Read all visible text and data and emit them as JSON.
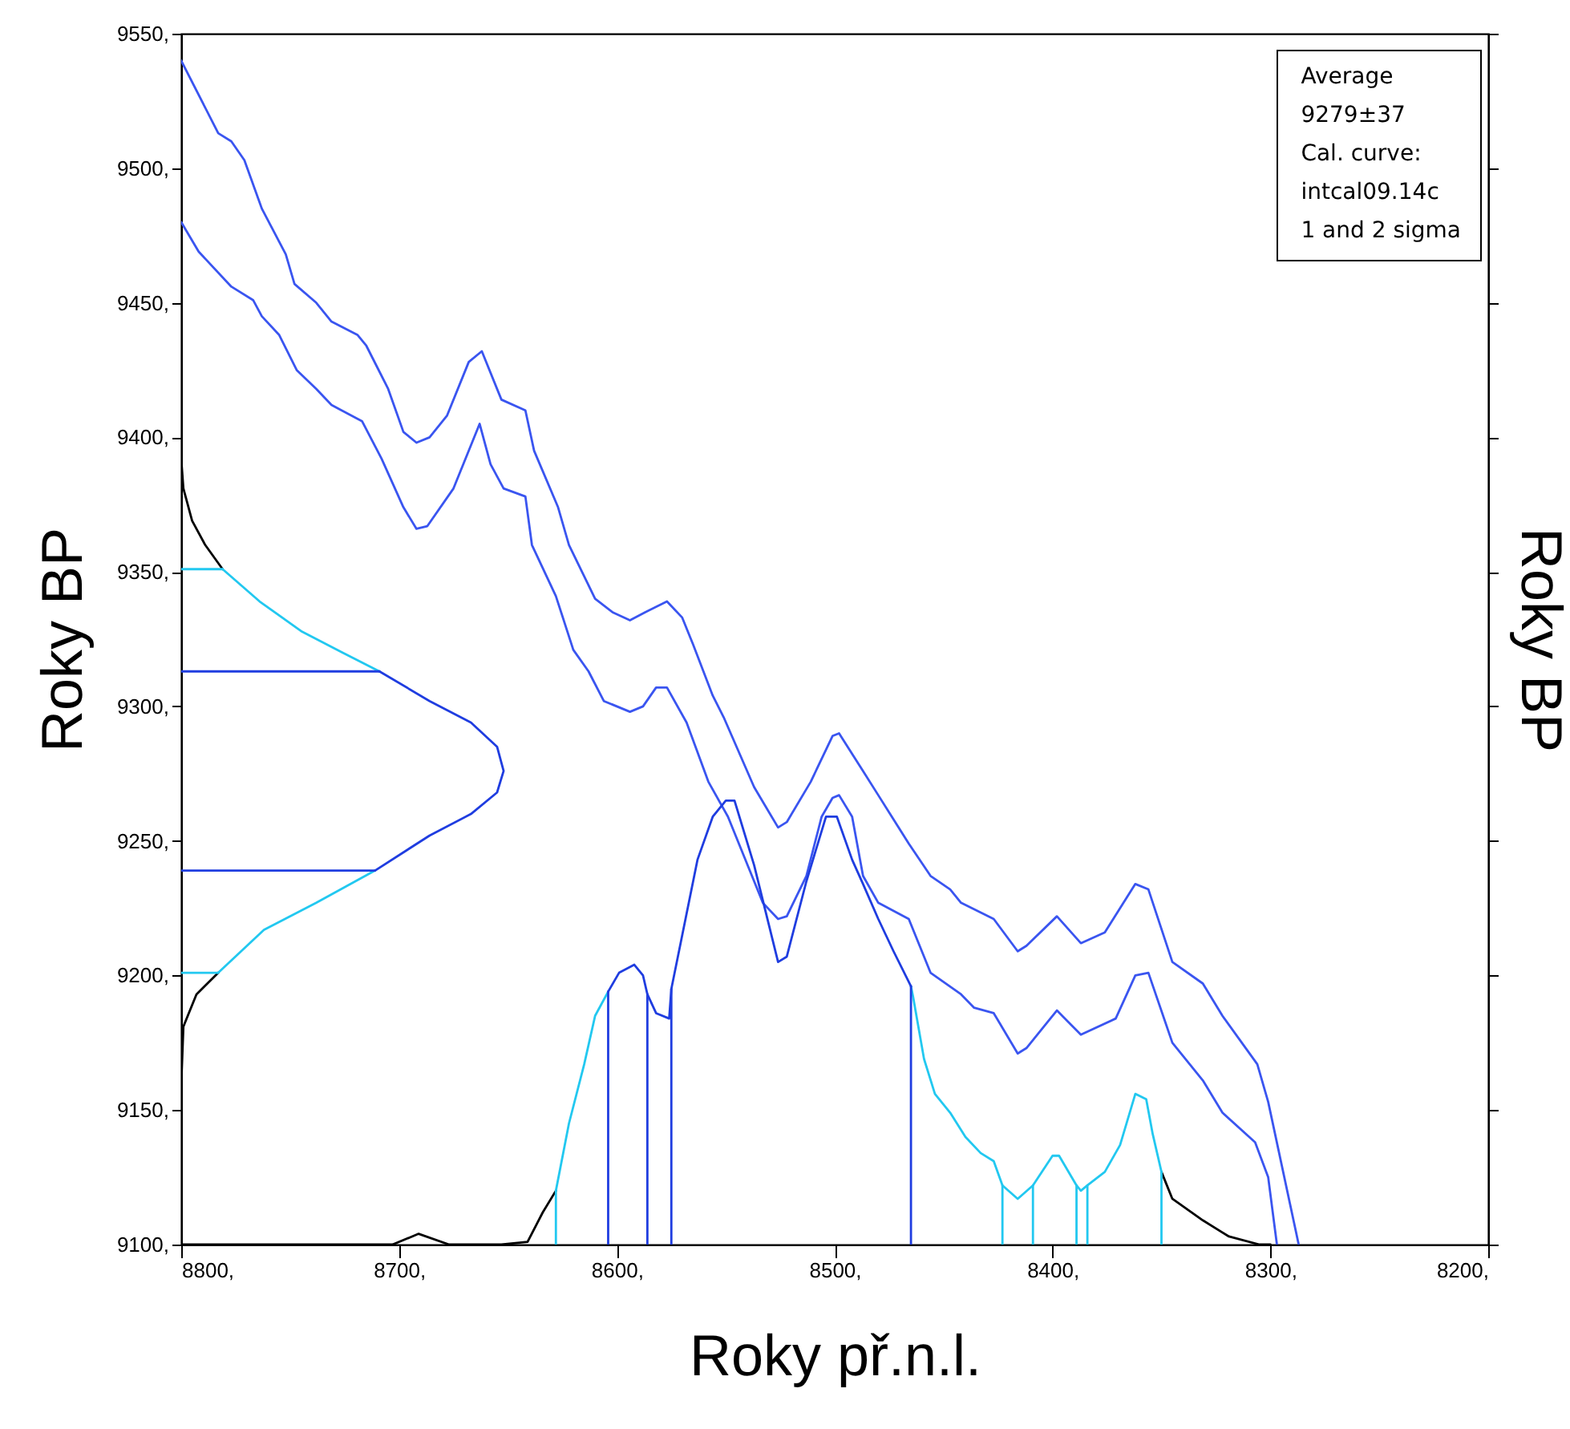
{
  "chart_data": {
    "type": "line",
    "xlabel": "Roky př.n.l.",
    "ylabel": "Roky BP",
    "y2label": "Roky BP",
    "annotations": [
      "Average",
      "9279±37",
      "Cal. curve:",
      "intcal09.14c",
      "1 and 2 sigma"
    ],
    "xlim": [
      8800,
      8200
    ],
    "ylim": [
      9100,
      9550
    ],
    "xticks": [
      {
        "value": 8800,
        "label": "8800,"
      },
      {
        "value": 8700,
        "label": "8700,"
      },
      {
        "value": 8600,
        "label": "8600,"
      },
      {
        "value": 8500,
        "label": "8500,"
      },
      {
        "value": 8400,
        "label": "8400,"
      },
      {
        "value": 8300,
        "label": "8300,"
      },
      {
        "value": 8200,
        "label": "8200,"
      }
    ],
    "yticks": [
      {
        "value": 9100,
        "label": "9100,"
      },
      {
        "value": 9150,
        "label": "9150,"
      },
      {
        "value": 9200,
        "label": "9200,"
      },
      {
        "value": 9250,
        "label": "9250,"
      },
      {
        "value": 9300,
        "label": "9300,"
      },
      {
        "value": 9350,
        "label": "9350,"
      },
      {
        "value": 9400,
        "label": "9400,"
      },
      {
        "value": 9450,
        "label": "9450,"
      },
      {
        "value": 9500,
        "label": "9500,"
      },
      {
        "value": 9550,
        "label": "9550,"
      }
    ],
    "grid": false,
    "line_style": "solid",
    "series": [
      {
        "color": "#3a55f0",
        "x": [
          8800,
          8783,
          8777,
          8771,
          8763,
          8752,
          8748,
          8738,
          8731,
          8719,
          8715,
          8705,
          8698,
          8692,
          8686,
          8678,
          8668,
          8662,
          8653,
          8642,
          8638,
          8627,
          8622,
          8610,
          8602,
          8594,
          8587,
          8577,
          8570,
          8565,
          8556,
          8551,
          8537,
          8526,
          8522,
          8511,
          8501,
          8498,
          8487,
          8480,
          8466,
          8456,
          8447,
          8442,
          8427,
          8416,
          8412,
          8398,
          8387,
          8376,
          8362,
          8356,
          8345,
          8331,
          8322,
          8306,
          8301,
          8287
        ],
        "values": [
          9540,
          9513,
          9510,
          9503,
          9485,
          9468,
          9457,
          9450,
          9443,
          9438,
          9434,
          9418,
          9402,
          9398,
          9400,
          9408,
          9428,
          9432,
          9414,
          9410,
          9395,
          9374,
          9360,
          9340,
          9335,
          9332,
          9335,
          9339,
          9333,
          9323,
          9304,
          9296,
          9270,
          9255,
          9257,
          9272,
          9289,
          9290,
          9276,
          9267,
          9249,
          9237,
          9232,
          9227,
          9221,
          9209,
          9211,
          9222,
          9212,
          9216,
          9234,
          9232,
          9205,
          9197,
          9185,
          9167,
          9153,
          9100
        ]
      },
      {
        "color": "#3a55f0",
        "x": [
          8800,
          8792,
          8777,
          8767,
          8763,
          8755,
          8747,
          8738,
          8731,
          8717,
          8708,
          8698,
          8692,
          8687,
          8675,
          8663,
          8658,
          8652,
          8642,
          8639,
          8628,
          8620,
          8613,
          8606,
          8594,
          8588,
          8582,
          8577,
          8568,
          8558,
          8549,
          8539,
          8533,
          8526,
          8522,
          8513,
          8506,
          8501,
          8498,
          8492,
          8487,
          8480,
          8466,
          8456,
          8442,
          8436,
          8427,
          8416,
          8412,
          8398,
          8387,
          8371,
          8362,
          8356,
          8345,
          8331,
          8322,
          8307,
          8301,
          8297
        ],
        "values": [
          9480,
          9469,
          9456,
          9451,
          9445,
          9438,
          9425,
          9418,
          9412,
          9406,
          9392,
          9374,
          9366,
          9367,
          9381,
          9405,
          9390,
          9381,
          9378,
          9360,
          9341,
          9321,
          9313,
          9302,
          9298,
          9300,
          9307,
          9307,
          9294,
          9272,
          9259,
          9239,
          9227,
          9221,
          9222,
          9237,
          9259,
          9266,
          9267,
          9259,
          9237,
          9227,
          9221,
          9201,
          9193,
          9188,
          9186,
          9171,
          9173,
          9187,
          9178,
          9184,
          9200,
          9201,
          9175,
          9161,
          9149,
          9138,
          9125,
          9100
        ]
      },
      {
        "color": "#000000",
        "x": [
          8800,
          8799,
          8795,
          8789,
          8781,
          null,
          8783,
          8793,
          8799,
          8800,
          8800,
          null,
          8800,
          8703,
          8691,
          8677,
          8653,
          8641,
          8634,
          8628,
          null,
          8350,
          8345,
          8331,
          8319,
          8305,
          8300
        ],
        "values": [
          9392,
          9381,
          9369,
          9360,
          9351,
          null,
          9201,
          9193,
          9181,
          9159,
          9100,
          null,
          9100,
          9100,
          9104,
          9100,
          9100,
          9101,
          9112,
          9120,
          null,
          9127,
          9117,
          9109,
          9103,
          9100,
          9100
        ]
      },
      {
        "color": "#22c8f0",
        "x": [
          8781,
          8764,
          8745,
          8726,
          8709,
          null,
          8711,
          8738,
          8762,
          8783,
          null,
          8800,
          8781,
          null,
          8800,
          8783,
          null,
          8628,
          8622,
          8615,
          8610,
          8604,
          null,
          8465,
          8464,
          8459,
          8454,
          8447,
          8440,
          8433,
          8427,
          8423,
          8416,
          8409,
          8400,
          8397,
          8389,
          8387,
          8384,
          8376,
          8369,
          8362,
          8357,
          8354,
          8350,
          null,
          8628,
          8628,
          null,
          8423,
          8423,
          null,
          8409,
          8409,
          null,
          8389,
          8389,
          null,
          8384,
          8384,
          null,
          8350,
          8350
        ],
        "values": [
          9351,
          9339,
          9328,
          9320,
          9313,
          null,
          9239,
          9227,
          9217,
          9201,
          null,
          9351,
          9351,
          null,
          9201,
          9201,
          null,
          9120,
          9145,
          9167,
          9185,
          9194,
          null,
          9196,
          9192,
          9169,
          9156,
          9149,
          9140,
          9134,
          9131,
          9122,
          9117,
          9122,
          9133,
          9133,
          9122,
          9120,
          9122,
          9127,
          9137,
          9156,
          9154,
          9141,
          9127,
          null,
          9100,
          9120,
          null,
          9100,
          9122,
          null,
          9100,
          9122,
          null,
          9100,
          9122,
          null,
          9100,
          9122,
          null,
          9100,
          9127
        ]
      },
      {
        "color": "#1f3de0",
        "x": [
          8709,
          8686,
          8667,
          8655,
          8652,
          8655,
          8667,
          8686,
          8711,
          null,
          8800,
          8709,
          null,
          8800,
          8711,
          null,
          8604,
          8599,
          8592,
          8588,
          8586,
          8582,
          8576,
          8575,
          8563,
          8556,
          8550,
          8546,
          8537,
          8526,
          8522,
          8513,
          8504,
          8499,
          8492,
          8487,
          8480,
          8473,
          8465,
          null,
          8604,
          8604,
          null,
          8586,
          8586,
          null,
          8575,
          8575,
          null,
          8465,
          8465
        ],
        "values": [
          9313,
          9302,
          9294,
          9285,
          9276,
          9268,
          9260,
          9252,
          9239,
          null,
          9313,
          9313,
          null,
          9239,
          9239,
          null,
          9194,
          9201,
          9204,
          9200,
          9193,
          9186,
          9184,
          9195,
          9243,
          9259,
          9265,
          9265,
          9241,
          9205,
          9207,
          9235,
          9259,
          9259,
          9243,
          9234,
          9221,
          9209,
          9196,
          null,
          9100,
          9194,
          null,
          9100,
          9193,
          null,
          9100,
          9195,
          null,
          9100,
          9196
        ]
      }
    ]
  }
}
